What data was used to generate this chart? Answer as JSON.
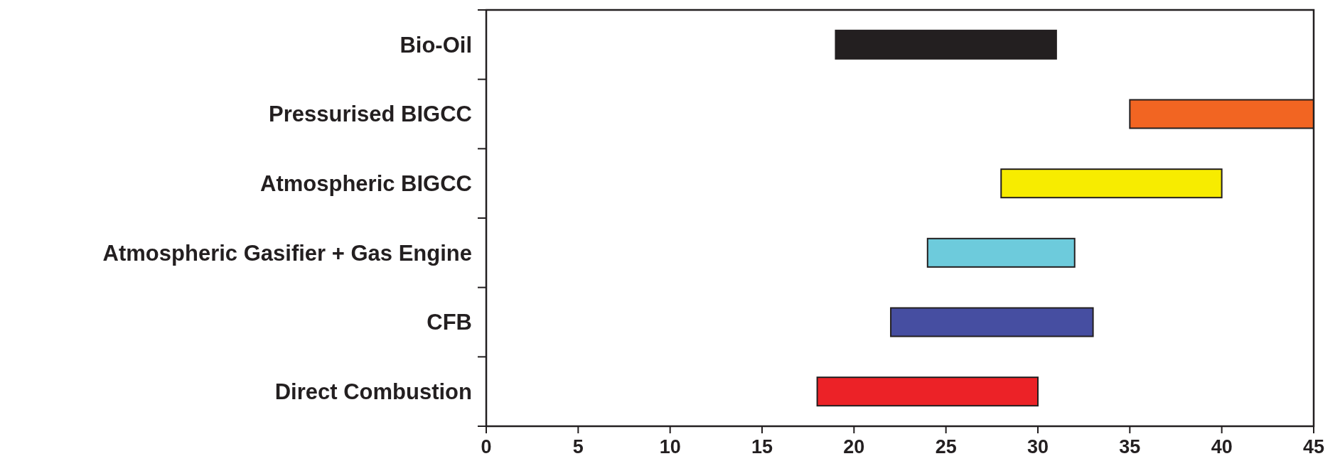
{
  "chart_data": {
    "type": "bar",
    "orientation": "horizontal",
    "categories": [
      "Bio-Oil",
      "Pressurised BIGCC",
      "Atmospheric BIGCC",
      "Atmospheric Gasifier + Gas Engine",
      "CFB",
      "Direct Combustion"
    ],
    "base": [
      19,
      35,
      28,
      24,
      22,
      18
    ],
    "values": [
      12,
      10,
      12,
      8,
      11,
      12
    ],
    "colors": [
      "#231f20",
      "#f26522",
      "#f7ec00",
      "#6dcbdc",
      "#464ea1",
      "#ec2227"
    ],
    "xlim": [
      0,
      45
    ],
    "xticks": [
      0,
      5,
      10,
      15,
      20,
      25,
      30,
      35,
      40,
      45
    ]
  }
}
